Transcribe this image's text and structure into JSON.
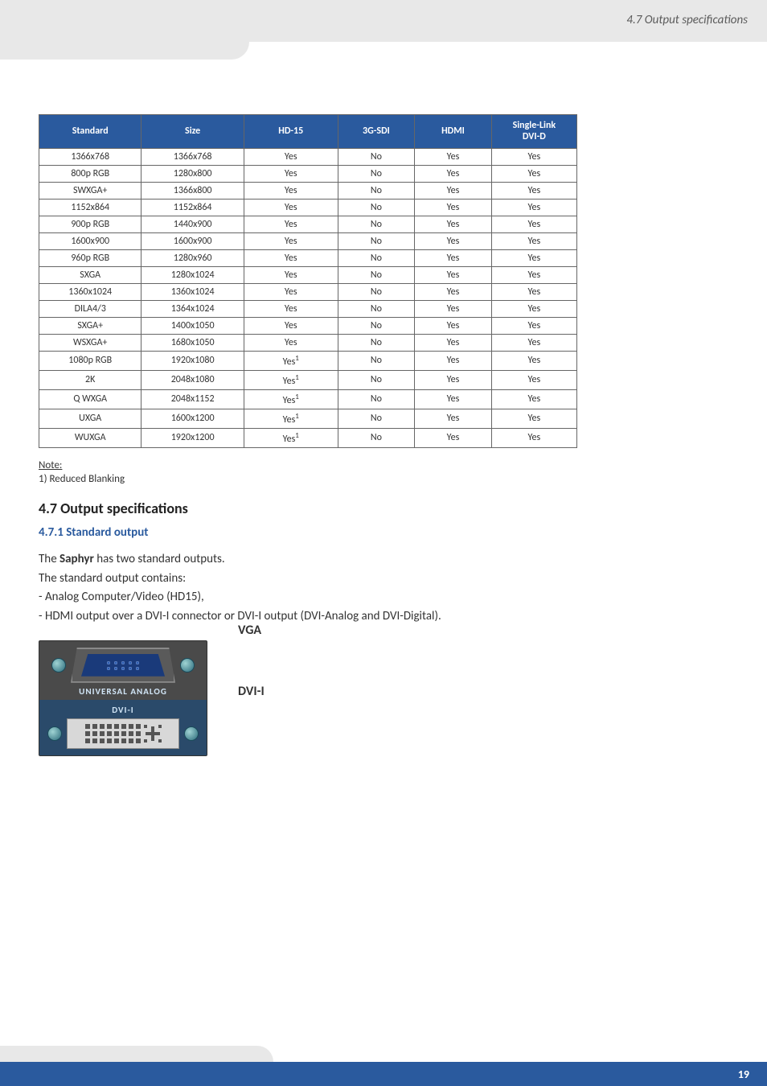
{
  "page": {
    "header_section": "4.7 Output specifications",
    "page_number": "19"
  },
  "table": {
    "columns": [
      "Standard",
      "Size",
      "HD-15",
      "3G-SDI",
      "HDMI",
      "Single-Link DVI-D"
    ],
    "col_widths": [
      "120px",
      "120px",
      "110px",
      "90px",
      "90px",
      "100px"
    ],
    "header_bg": "#2a5a9e",
    "header_color": "#ffffff",
    "border_color": "#666666",
    "rows": [
      [
        "1366x768",
        "1366x768",
        "Yes",
        "No",
        "Yes",
        "Yes"
      ],
      [
        "800p RGB",
        "1280x800",
        "Yes",
        "No",
        "Yes",
        "Yes"
      ],
      [
        "SWXGA+",
        "1366x800",
        "Yes",
        "No",
        "Yes",
        "Yes"
      ],
      [
        "1152x864",
        "1152x864",
        "Yes",
        "No",
        "Yes",
        "Yes"
      ],
      [
        "900p RGB",
        "1440x900",
        "Yes",
        "No",
        "Yes",
        "Yes"
      ],
      [
        "1600x900",
        "1600x900",
        "Yes",
        "No",
        "Yes",
        "Yes"
      ],
      [
        "960p RGB",
        "1280x960",
        "Yes",
        "No",
        "Yes",
        "Yes"
      ],
      [
        "SXGA",
        "1280x1024",
        "Yes",
        "No",
        "Yes",
        "Yes"
      ],
      [
        "1360x1024",
        "1360x1024",
        "Yes",
        "No",
        "Yes",
        "Yes"
      ],
      [
        "DILA4/3",
        "1364x1024",
        "Yes",
        "No",
        "Yes",
        "Yes"
      ],
      [
        "SXGA+",
        "1400x1050",
        "Yes",
        "No",
        "Yes",
        "Yes"
      ],
      [
        "WSXGA+",
        "1680x1050",
        "Yes",
        "No",
        "Yes",
        "Yes"
      ],
      [
        "1080p RGB",
        "1920x1080",
        "Yes¹",
        "No",
        "Yes",
        "Yes"
      ],
      [
        "2K",
        "2048x1080",
        "Yes¹",
        "No",
        "Yes",
        "Yes"
      ],
      [
        "Q WXGA",
        "2048x1152",
        "Yes¹",
        "No",
        "Yes",
        "Yes"
      ],
      [
        "UXGA",
        "1600x1200",
        "Yes¹",
        "No",
        "Yes",
        "Yes"
      ],
      [
        "WUXGA",
        "1920x1200",
        "Yes¹",
        "No",
        "Yes",
        "Yes"
      ]
    ]
  },
  "note": {
    "label": "Note:",
    "body": "1) Reduced Blanking"
  },
  "section": {
    "heading": "4.7 Output specifications",
    "subheading": "4.7.1 Standard output"
  },
  "body": {
    "line1_a": "The ",
    "line1_bold": "Saphyr",
    "line1_b": " has two standard outputs.",
    "line2": "The standard output contains:",
    "line3": "- Analog Computer/Video (HD15),",
    "line4": "- HDMI output over a DVI-I connector or DVI-I output (DVI-Analog and DVI-Digital)."
  },
  "connectors": {
    "vga_caption": "UNIVERSAL ANALOG",
    "vga_label": "VGA",
    "dvi_caption": "DVI-I",
    "dvi_label": "DVI-I"
  }
}
